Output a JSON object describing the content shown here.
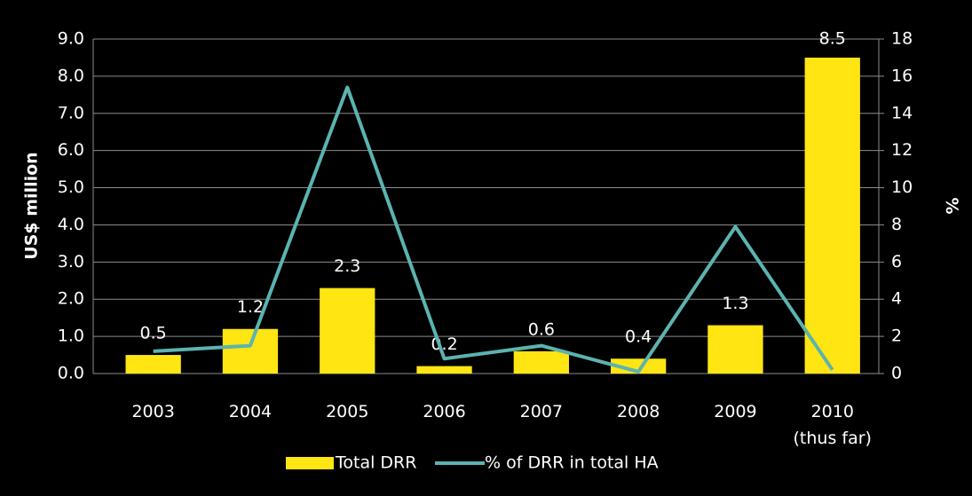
{
  "chart_data": {
    "type": "bar",
    "categories": [
      "2003",
      "2004",
      "2005",
      "2006",
      "2007",
      "2008",
      "2009",
      "2010\n(thus far)"
    ],
    "series": [
      {
        "name": "Total DRR",
        "type": "bar",
        "color": "#ffe512",
        "values": [
          0.5,
          1.2,
          2.3,
          0.2,
          0.6,
          0.4,
          1.3,
          8.5
        ]
      },
      {
        "name": "% of DRR in total HA",
        "type": "line",
        "axis": "y2",
        "color": "#5cb3b0",
        "values": [
          1.2,
          1.5,
          15.4,
          0.8,
          1.5,
          0.1,
          7.9,
          0.2
        ]
      }
    ],
    "y_label": "US$ million",
    "y2_label": "%",
    "ylim": [
      0,
      9
    ],
    "yticks": [
      {
        "value": 0,
        "label": "0.0"
      },
      {
        "value": 1,
        "label": "1.0"
      },
      {
        "value": 2,
        "label": "2.0"
      },
      {
        "value": 3,
        "label": "3.0"
      },
      {
        "value": 4,
        "label": "4.0"
      },
      {
        "value": 5,
        "label": "5.0"
      },
      {
        "value": 6,
        "label": "6.0"
      },
      {
        "value": 7,
        "label": "7.0"
      },
      {
        "value": 8,
        "label": "8.0"
      },
      {
        "value": 9,
        "label": "9.0"
      }
    ],
    "y2lim": [
      0,
      18
    ],
    "y2ticks": [
      0,
      2,
      4,
      6,
      8,
      10,
      12,
      14,
      16,
      18
    ],
    "grid": true,
    "legend": "bottom"
  }
}
